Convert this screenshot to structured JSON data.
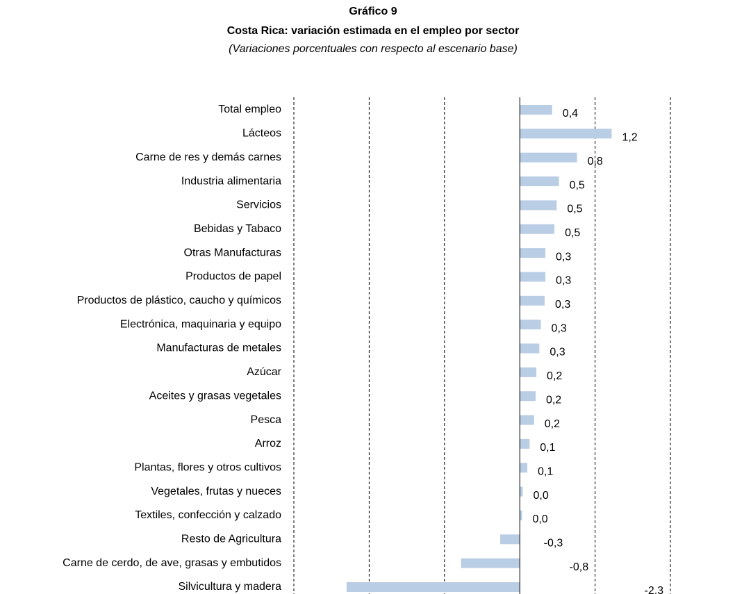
{
  "chart_data": {
    "type": "barh",
    "title": "Gráfico 9",
    "subtitle": "Costa Rica: variación estimada en el empleo por sector",
    "note": "(Variaciones porcentuales con respecto al escenario base)",
    "categories": [
      "Total empleo",
      "Lácteos",
      "Carne de res y demás carnes",
      "Industria alimentaria",
      "Servicios",
      "Bebidas y Tabaco",
      "Otras Manufacturas",
      "Productos de papel",
      "Productos de plástico, caucho y químicos",
      "Electrónica, maquinaria y equipo",
      "Manufacturas de metales",
      "Azúcar",
      "Aceites y grasas vegetales",
      "Pesca",
      "Arroz",
      "Plantas, flores y otros cultivos",
      "Vegetales, frutas y nueces",
      "Textiles, confección y calzado",
      "Resto de Agricultura",
      "Carne de cerdo, de ave, grasas y embutidos",
      "Silvicultura y madera"
    ],
    "values": [
      0.43,
      1.22,
      0.76,
      0.52,
      0.49,
      0.46,
      0.34,
      0.34,
      0.33,
      0.28,
      0.26,
      0.22,
      0.21,
      0.19,
      0.13,
      0.1,
      0.04,
      0.03,
      -0.26,
      -0.78,
      -2.3
    ],
    "value_labels": [
      "0,4",
      "1,2",
      "0,8",
      "0,5",
      "0,5",
      "0,5",
      "0,3",
      "0,3",
      "0,3",
      "0,3",
      "0,3",
      "0,2",
      "0,2",
      "0,2",
      "0,1",
      "0,1",
      "0,0",
      "0,0",
      "-0,3",
      "-0,8",
      "-2,3"
    ],
    "color": "#b9cde5",
    "xlim": [
      -3,
      2
    ],
    "xticks": [
      -3,
      -2,
      -1,
      1,
      2
    ],
    "grid": true
  }
}
